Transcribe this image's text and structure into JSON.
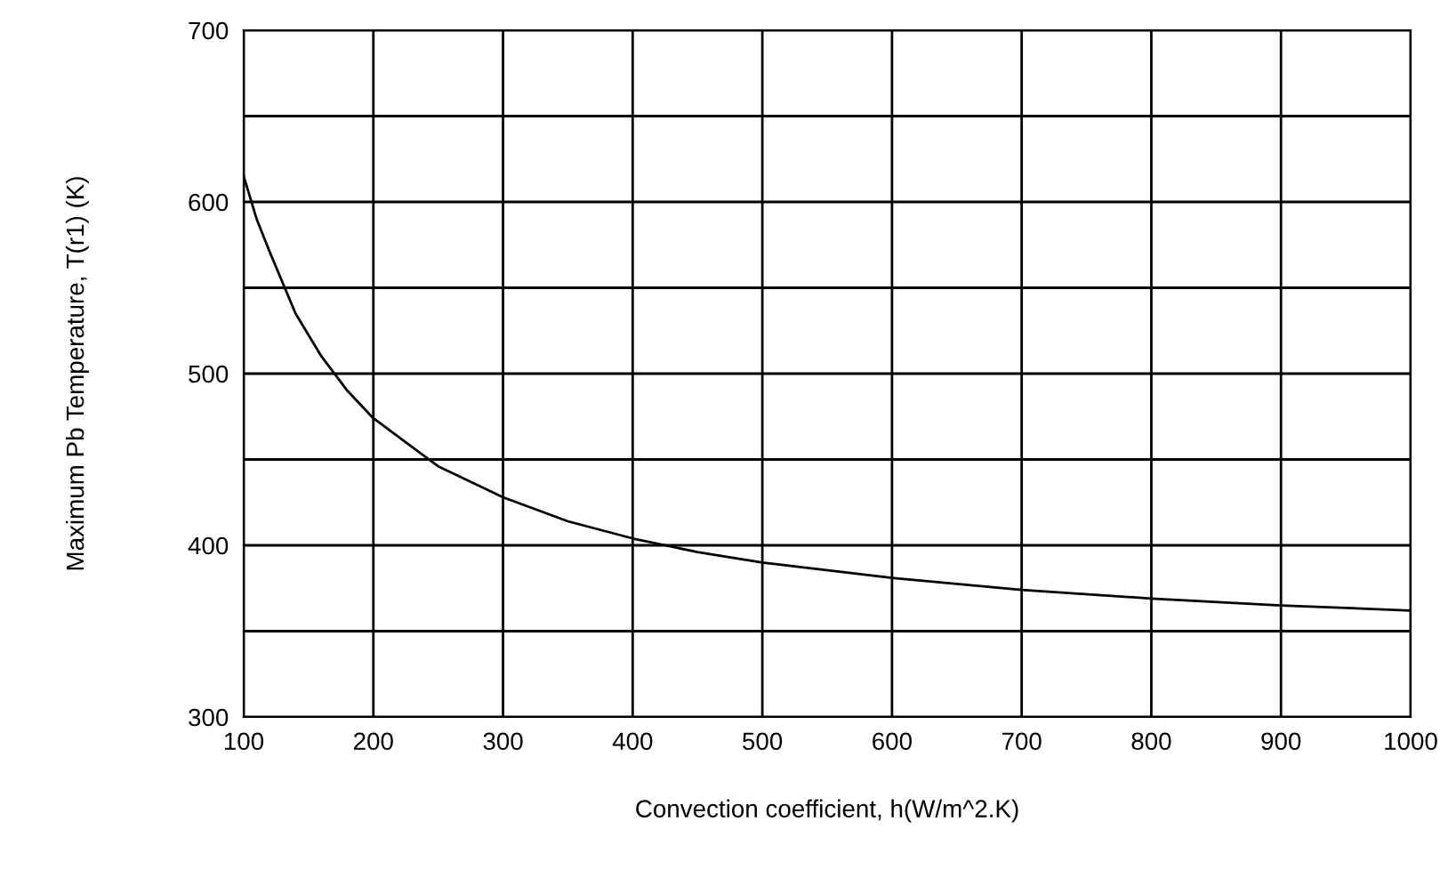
{
  "chart_data": {
    "type": "line",
    "xlabel": "Convection coefficient, h(W/m^2.K)",
    "ylabel": "Maximum Pb Temperature, T(r1) (K)",
    "series": [
      {
        "color": "#000000",
        "x": [
          100,
          110,
          120,
          140,
          160,
          180,
          200,
          250,
          300,
          350,
          400,
          450,
          500,
          600,
          700,
          800,
          900,
          1000
        ],
        "values": [
          615,
          590,
          571,
          535,
          510,
          490,
          474,
          446,
          428,
          414,
          404,
          396,
          390,
          381,
          374,
          369,
          365,
          362
        ]
      }
    ],
    "xlim": [
      100,
      1000
    ],
    "xticks": [
      100,
      200,
      300,
      400,
      500,
      600,
      700,
      800,
      900,
      1000
    ],
    "ylim": [
      300,
      700
    ],
    "yticks": [
      300,
      {
        "value": 350,
        "label": null
      },
      400,
      {
        "value": 450,
        "label": null
      },
      500,
      {
        "value": 550,
        "label": null
      },
      600,
      {
        "value": 650,
        "label": null
      },
      700
    ],
    "grid": true,
    "marker": "none",
    "line_style": "solid"
  }
}
